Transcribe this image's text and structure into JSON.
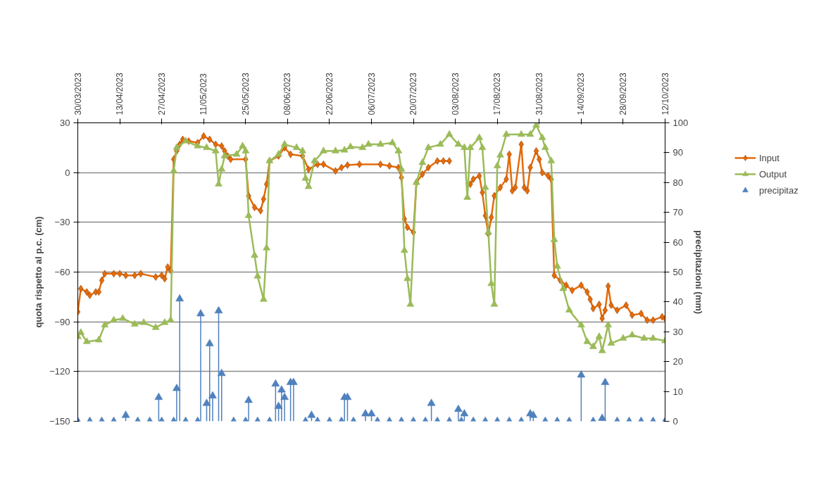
{
  "chart_data": {
    "type": "line",
    "xlim": [
      "2023-03-30",
      "2023-10-12"
    ],
    "xticks": [
      {
        "value": "2023-03-30",
        "label": "30/03/2023"
      },
      {
        "value": "2023-04-13",
        "label": "13/04/2023"
      },
      {
        "value": "2023-04-27",
        "label": "27/04/2023"
      },
      {
        "value": "2023-05-11",
        "label": "11/05/2023"
      },
      {
        "value": "2023-05-25",
        "label": "25/05/2023"
      },
      {
        "value": "2023-06-08",
        "label": "08/06/2023"
      },
      {
        "value": "2023-06-22",
        "label": "22/06/2023"
      },
      {
        "value": "2023-07-06",
        "label": "06/07/2023"
      },
      {
        "value": "2023-07-20",
        "label": "20/07/2023"
      },
      {
        "value": "2023-08-03",
        "label": "03/08/2023"
      },
      {
        "value": "2023-08-17",
        "label": "17/08/2023"
      },
      {
        "value": "2023-08-31",
        "label": "31/08/2023"
      },
      {
        "value": "2023-09-14",
        "label": "14/09/2023"
      },
      {
        "value": "2023-09-28",
        "label": "28/09/2023"
      },
      {
        "value": "2023-10-12",
        "label": "12/10/2023"
      }
    ],
    "ylim": [
      -150,
      30
    ],
    "yticks": [
      -150,
      -120,
      -90,
      -60,
      -30,
      0,
      30
    ],
    "y2lim": [
      0,
      100
    ],
    "y2ticks": [
      0,
      10,
      20,
      30,
      40,
      50,
      60,
      70,
      80,
      90,
      100
    ],
    "ylabel": "quota rispetto al p.c. (cm)",
    "y2label": "precipitazioni (mm)",
    "grid": "y",
    "legend": "top right",
    "series": [
      {
        "name": "Input",
        "marker": "diamond",
        "color": "#e46c0a",
        "x": [
          "2023-03-30",
          "2023-03-31",
          "2023-04-02",
          "2023-04-03",
          "2023-04-05",
          "2023-04-06",
          "2023-04-07",
          "2023-04-08",
          "2023-04-11",
          "2023-04-13",
          "2023-04-15",
          "2023-04-18",
          "2023-04-20",
          "2023-04-25",
          "2023-04-27",
          "2023-04-28",
          "2023-04-29",
          "2023-04-30",
          "2023-05-01",
          "2023-05-02",
          "2023-05-03",
          "2023-05-04",
          "2023-05-06",
          "2023-05-09",
          "2023-05-11",
          "2023-05-13",
          "2023-05-15",
          "2023-05-17",
          "2023-05-18",
          "2023-05-19",
          "2023-05-20",
          "2023-05-25",
          "2023-05-26",
          "2023-05-28",
          "2023-05-30",
          "2023-05-31",
          "2023-06-01",
          "2023-06-02",
          "2023-06-05",
          "2023-06-07",
          "2023-06-09",
          "2023-06-13",
          "2023-06-15",
          "2023-06-18",
          "2023-06-20",
          "2023-06-24",
          "2023-06-26",
          "2023-06-28",
          "2023-07-02",
          "2023-07-09",
          "2023-07-12",
          "2023-07-15",
          "2023-07-16",
          "2023-07-17",
          "2023-07-18",
          "2023-07-20",
          "2023-07-21",
          "2023-07-23",
          "2023-07-25",
          "2023-07-28",
          "2023-07-30",
          "2023-08-01",
          "2023-08-03",
          "2023-08-08",
          "2023-08-09",
          "2023-08-11",
          "2023-08-12",
          "2023-08-13",
          "2023-08-14",
          "2023-08-15",
          "2023-08-16",
          "2023-08-18",
          "2023-08-20",
          "2023-08-21",
          "2023-08-22",
          "2023-08-23",
          "2023-08-25",
          "2023-08-26",
          "2023-08-27",
          "2023-08-28",
          "2023-08-30",
          "2023-08-31",
          "2023-09-01",
          "2023-09-03",
          "2023-09-04",
          "2023-09-05",
          "2023-09-07",
          "2023-09-09",
          "2023-09-11",
          "2023-09-14",
          "2023-09-16",
          "2023-09-17",
          "2023-09-18",
          "2023-09-20",
          "2023-09-21",
          "2023-09-22",
          "2023-09-23",
          "2023-09-24",
          "2023-09-26",
          "2023-09-29",
          "2023-10-01",
          "2023-10-04",
          "2023-10-06",
          "2023-10-08",
          "2023-10-11",
          "2023-10-12"
        ],
        "values": [
          -84,
          -70,
          -72,
          -74,
          -72,
          -72,
          -65,
          -61,
          -61,
          -61,
          -62,
          -62,
          -61,
          -63,
          -62,
          -64,
          -57,
          -59,
          8,
          13,
          17,
          20,
          19,
          18,
          22,
          20,
          17,
          16,
          13,
          10,
          8,
          8,
          -14,
          -21,
          -23,
          -16,
          -7,
          7,
          10,
          15,
          11,
          10,
          2,
          5,
          5,
          1,
          3,
          4.5,
          5,
          5,
          4,
          3,
          -3,
          -28,
          -33,
          -36,
          -6,
          -1,
          3,
          7,
          7,
          7,
          null,
          -7,
          -4,
          -2,
          -12,
          -26,
          -37,
          -27,
          -14,
          -9,
          -4,
          11,
          -11,
          -9,
          17,
          -9,
          -11,
          3,
          13,
          8,
          0,
          -2,
          -4,
          -62,
          -65,
          -68,
          -71,
          -68,
          -72,
          -76.5,
          -82,
          -79.5,
          -88,
          -83,
          -68.5,
          -80,
          -83,
          -80,
          -86,
          -85,
          -89,
          -89,
          -87,
          -88
        ]
      },
      {
        "name": "Output",
        "marker": "triangle",
        "color": "#9bbb59",
        "x": [
          "2023-03-30",
          "2023-03-31",
          "2023-04-02",
          "2023-04-06",
          "2023-04-08",
          "2023-04-11",
          "2023-04-14",
          "2023-04-18",
          "2023-04-21",
          "2023-04-25",
          "2023-04-28",
          "2023-04-30",
          "2023-05-01",
          "2023-05-02",
          "2023-05-05",
          "2023-05-09",
          "2023-05-12",
          "2023-05-15",
          "2023-05-16",
          "2023-05-17",
          "2023-05-18",
          "2023-05-22",
          "2023-05-24",
          "2023-05-25",
          "2023-05-26",
          "2023-05-28",
          "2023-05-29",
          "2023-05-31",
          "2023-06-01",
          "2023-06-02",
          "2023-06-05",
          "2023-06-07",
          "2023-06-11",
          "2023-06-13",
          "2023-06-14",
          "2023-06-15",
          "2023-06-17",
          "2023-06-20",
          "2023-06-24",
          "2023-06-27",
          "2023-06-29",
          "2023-07-03",
          "2023-07-05",
          "2023-07-09",
          "2023-07-13",
          "2023-07-15",
          "2023-07-16",
          "2023-07-17",
          "2023-07-18",
          "2023-07-19",
          "2023-07-21",
          "2023-07-23",
          "2023-07-25",
          "2023-07-29",
          "2023-08-01",
          "2023-08-04",
          "2023-08-06",
          "2023-08-07",
          "2023-08-08",
          "2023-08-11",
          "2023-08-12",
          "2023-08-13",
          "2023-08-14",
          "2023-08-15",
          "2023-08-16",
          "2023-08-17",
          "2023-08-18",
          "2023-08-20",
          "2023-08-25",
          "2023-08-28",
          "2023-08-30",
          "2023-09-01",
          "2023-09-02",
          "2023-09-04",
          "2023-09-05",
          "2023-09-06",
          "2023-09-08",
          "2023-09-10",
          "2023-09-14",
          "2023-09-16",
          "2023-09-18",
          "2023-09-20",
          "2023-09-21",
          "2023-09-23",
          "2023-09-24",
          "2023-09-28",
          "2023-10-01",
          "2023-10-05",
          "2023-10-08",
          "2023-10-12"
        ],
        "values": [
          -99,
          -96.5,
          -102,
          -101,
          -92,
          -89,
          -88,
          -91.5,
          -90.5,
          -93.5,
          -90.5,
          -89,
          1,
          15,
          19,
          16,
          15,
          13,
          -7,
          2,
          10,
          11,
          16,
          13,
          -26,
          -50,
          -62.5,
          -76.5,
          -45.5,
          7,
          11,
          17,
          15,
          13,
          -3.5,
          -8.5,
          7,
          13,
          13,
          13.5,
          15.5,
          15,
          17,
          17,
          18,
          13,
          2,
          -47,
          -64,
          -79.5,
          -6,
          6,
          15,
          17,
          23,
          17,
          15,
          -15,
          15,
          21,
          15,
          -9,
          -36,
          -67,
          -79.5,
          4,
          10.5,
          23,
          23,
          23,
          28.5,
          21,
          15,
          7,
          -40.5,
          -56.5,
          -70,
          -83,
          -92,
          -102,
          -105,
          -99,
          -107.5,
          -92,
          -103,
          -100,
          -98,
          -100,
          -100,
          -101.5
        ]
      },
      {
        "name": "precipitaz",
        "type": "lollipop",
        "marker": "triangle",
        "color": "#4f81bd",
        "axis": "y2",
        "x": [
          "2023-03-30",
          "2023-04-03",
          "2023-04-07",
          "2023-04-11",
          "2023-04-15",
          "2023-04-19",
          "2023-04-23",
          "2023-04-26",
          "2023-04-27",
          "2023-05-01",
          "2023-05-02",
          "2023-05-03",
          "2023-05-05",
          "2023-05-09",
          "2023-05-10",
          "2023-05-12",
          "2023-05-13",
          "2023-05-14",
          "2023-05-16",
          "2023-05-17",
          "2023-05-21",
          "2023-05-25",
          "2023-05-26",
          "2023-05-29",
          "2023-06-02",
          "2023-06-04",
          "2023-06-05",
          "2023-06-06",
          "2023-06-07",
          "2023-06-09",
          "2023-06-10",
          "2023-06-14",
          "2023-06-16",
          "2023-06-18",
          "2023-06-22",
          "2023-06-26",
          "2023-06-27",
          "2023-06-28",
          "2023-06-30",
          "2023-07-04",
          "2023-07-06",
          "2023-07-08",
          "2023-07-12",
          "2023-07-16",
          "2023-07-20",
          "2023-07-24",
          "2023-07-26",
          "2023-07-28",
          "2023-08-01",
          "2023-08-04",
          "2023-08-05",
          "2023-08-06",
          "2023-08-09",
          "2023-08-13",
          "2023-08-17",
          "2023-08-21",
          "2023-08-25",
          "2023-08-28",
          "2023-08-29",
          "2023-09-02",
          "2023-09-06",
          "2023-09-10",
          "2023-09-14",
          "2023-09-18",
          "2023-09-21",
          "2023-09-22",
          "2023-09-26",
          "2023-09-30",
          "2023-10-04",
          "2023-10-08",
          "2023-10-12"
        ],
        "values": [
          0,
          0,
          0,
          0,
          2,
          0,
          0,
          8,
          0,
          0,
          11,
          41,
          0,
          0,
          36,
          6,
          26,
          8.5,
          37,
          16,
          0,
          0,
          7,
          0,
          0,
          12.5,
          5,
          10.5,
          8,
          13,
          13,
          0,
          2,
          0,
          0,
          0,
          8,
          8,
          0,
          2.5,
          2.5,
          0,
          0,
          0,
          0,
          0,
          6,
          0,
          0,
          4,
          0,
          2.5,
          0,
          0,
          0,
          0,
          0,
          2.5,
          2,
          0,
          0,
          0,
          15.5,
          0,
          1,
          13,
          0,
          0,
          0,
          0,
          0
        ]
      }
    ]
  }
}
